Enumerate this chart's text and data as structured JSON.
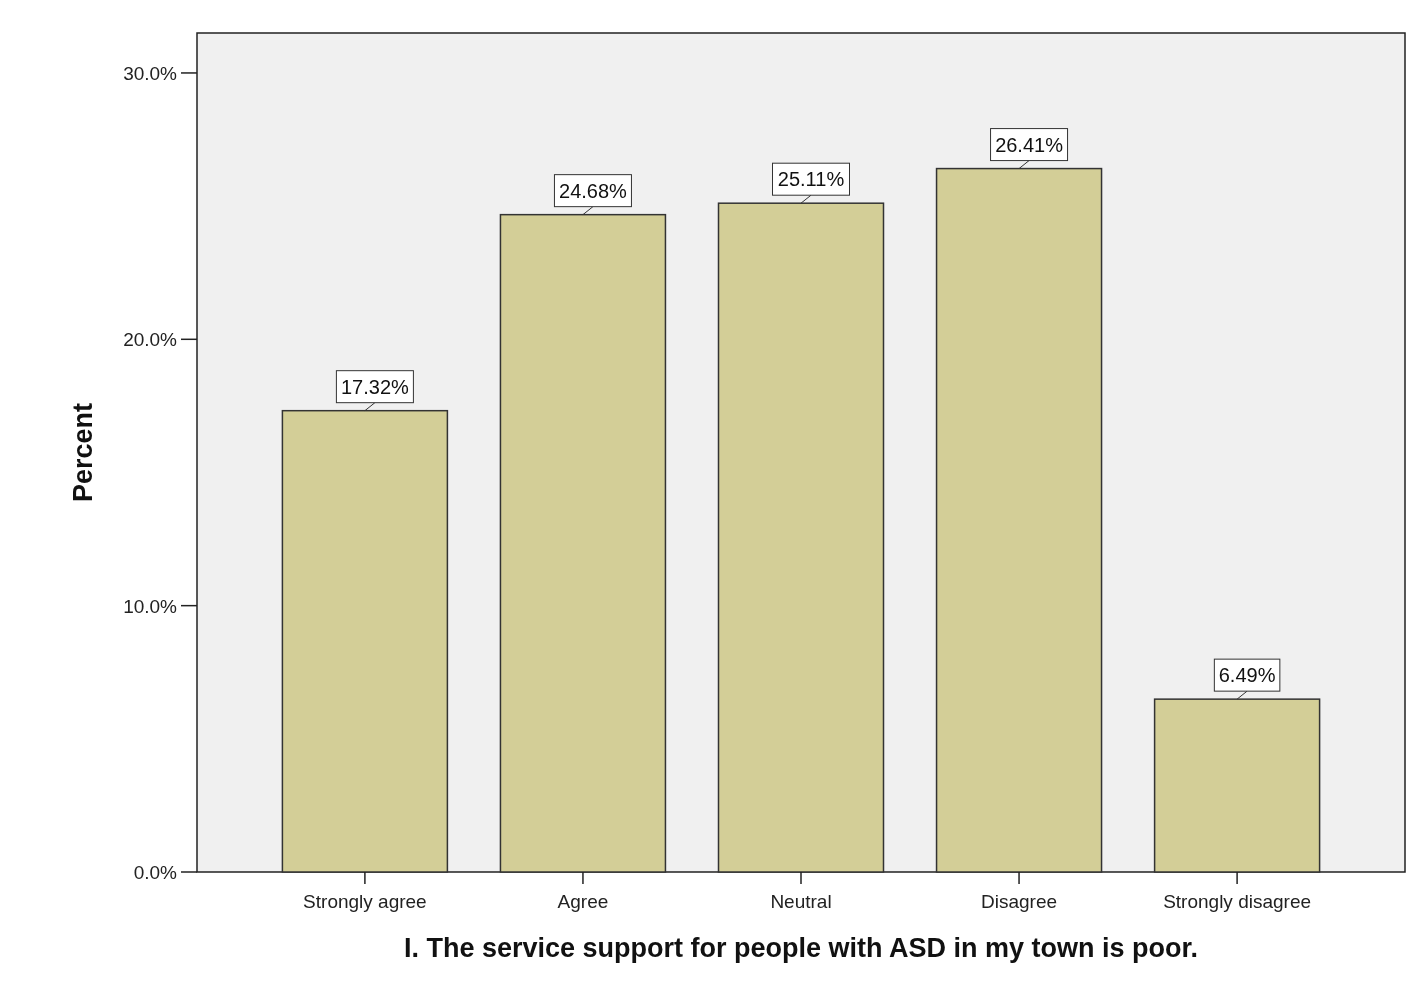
{
  "chart_data": {
    "type": "bar",
    "xlabel": "I. The service support for people with ASD in my town is poor.",
    "ylabel": "Percent",
    "categories": [
      "Strongly agree",
      "Agree",
      "Neutral",
      "Disagree",
      "Strongly disagree"
    ],
    "values": [
      17.32,
      24.68,
      25.11,
      26.41,
      6.49
    ],
    "value_labels": [
      "17.32%",
      "24.68%",
      "25.11%",
      "26.41%",
      "6.49%"
    ],
    "color": "#d3ce97",
    "ylim": [
      0,
      31.5
    ],
    "yticks": [
      {
        "value": 0,
        "label": "0.0%"
      },
      {
        "value": 10,
        "label": "10.0%"
      },
      {
        "value": 20,
        "label": "20.0%"
      },
      {
        "value": 30,
        "label": "30.0%"
      }
    ],
    "grid": false
  }
}
